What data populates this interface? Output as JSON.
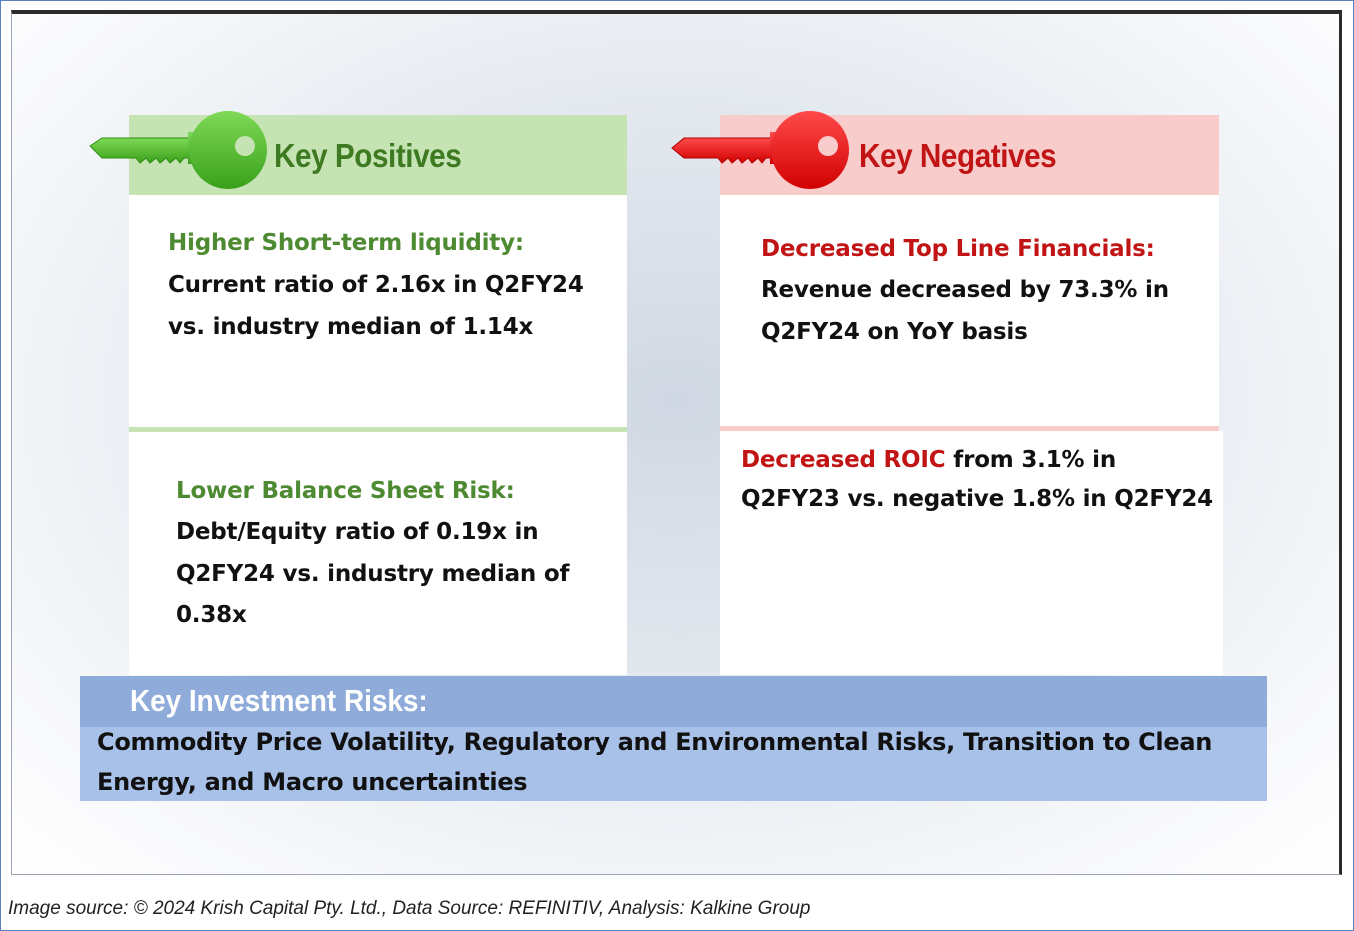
{
  "positives": {
    "title": "Key Positives",
    "items": [
      {
        "heading": "Higher Short-term liquidity:",
        "line1": "Current ratio of 2.16x in Q2FY24",
        "line2": "vs. industry median of 1.14x"
      },
      {
        "heading": "Lower Balance Sheet Risk:",
        "line1": "Debt/Equity ratio of 0.19x in",
        "line2": "Q2FY24 vs. industry median of",
        "line3": "0.38x"
      }
    ]
  },
  "negatives": {
    "title": "Key Negatives",
    "items": [
      {
        "heading": "Decreased Top Line Financials:",
        "line1": "Revenue decreased by 73.3% in",
        "line2": "Q2FY24 on YoY basis"
      },
      {
        "heading": "Decreased ROIC",
        "line1_rest": " from 3.1% in",
        "line2": "Q2FY23 vs. negative 1.8% in Q2FY24"
      }
    ]
  },
  "risks": {
    "title": "Key Investment Risks:",
    "line1": "Commodity Price Volatility, Regulatory and Environmental Risks, Transition to Clean",
    "line2": "Energy, and Macro uncertainties"
  },
  "caption": "Image source: © 2024 Krish Capital Pty. Ltd., Data Source: REFINITIV, Analysis: Kalkine Group",
  "colors": {
    "positive_band": "#c6e3b4",
    "negative_band": "#f9cccc",
    "positive_accent": "#3d7a21",
    "negative_accent": "#c11414",
    "risk_header": "#8eabda",
    "risk_body": "#a8c1e8"
  },
  "icons": {
    "positive": "key-icon",
    "negative": "key-icon"
  }
}
